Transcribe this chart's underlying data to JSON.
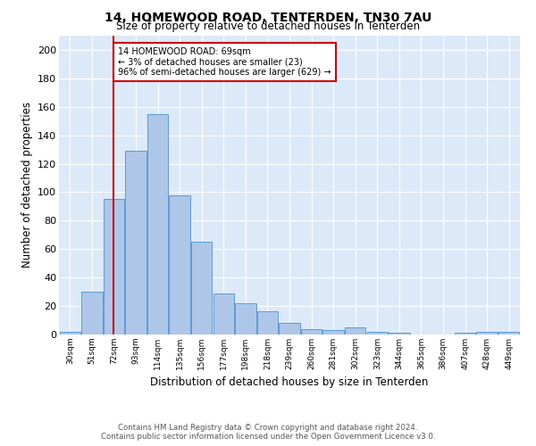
{
  "title": "14, HOMEWOOD ROAD, TENTERDEN, TN30 7AU",
  "subtitle": "Size of property relative to detached houses in Tenterden",
  "xlabel": "Distribution of detached houses by size in Tenterden",
  "ylabel": "Number of detached properties",
  "bin_labels": [
    "30sqm",
    "51sqm",
    "72sqm",
    "93sqm",
    "114sqm",
    "135sqm",
    "156sqm",
    "177sqm",
    "198sqm",
    "218sqm",
    "239sqm",
    "260sqm",
    "281sqm",
    "302sqm",
    "323sqm",
    "344sqm",
    "365sqm",
    "386sqm",
    "407sqm",
    "428sqm",
    "449sqm"
  ],
  "bar_heights": [
    2,
    30,
    95,
    129,
    155,
    98,
    65,
    29,
    22,
    16,
    8,
    4,
    3,
    5,
    2,
    1,
    0,
    0,
    1,
    2,
    2
  ],
  "bar_color": "#aec6e8",
  "bar_edge_color": "#5b9bd5",
  "vline_x": 2,
  "vline_color": "#cc0000",
  "annotation_text": "14 HOMEWOOD ROAD: 69sqm\n← 3% of detached houses are smaller (23)\n96% of semi-detached houses are larger (629) →",
  "annotation_box_color": "#ffffff",
  "annotation_box_edge_color": "#cc0000",
  "ylim": [
    0,
    210
  ],
  "yticks": [
    0,
    20,
    40,
    60,
    80,
    100,
    120,
    140,
    160,
    180,
    200
  ],
  "background_color": "#dce9f8",
  "footer_line1": "Contains HM Land Registry data © Crown copyright and database right 2024.",
  "footer_line2": "Contains public sector information licensed under the Open Government Licence v3.0."
}
